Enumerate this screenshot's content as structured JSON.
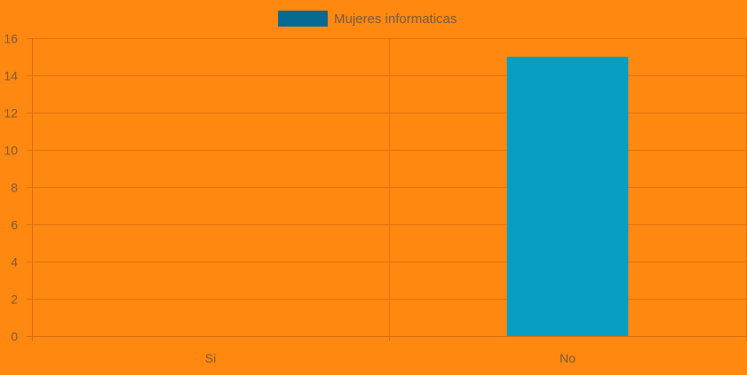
{
  "chart_data": {
    "type": "bar",
    "title": "",
    "xlabel": "",
    "ylabel": "",
    "categories": [
      "Si",
      "No"
    ],
    "series": [
      {
        "name": "Mujeres informaticas",
        "values": [
          0,
          15
        ]
      }
    ],
    "ylim": [
      0,
      16
    ],
    "yticks": [
      "0",
      "2",
      "4",
      "6",
      "8",
      "10",
      "12",
      "14",
      "16"
    ],
    "grid": true,
    "legend_position": "top-center",
    "colors": {
      "background": "#ff8811",
      "bar": "#069fc3",
      "legend_swatch": "#066b93",
      "grid": "#e0720c",
      "axis": "#d66b0b",
      "text": "#7a5a3a"
    }
  }
}
